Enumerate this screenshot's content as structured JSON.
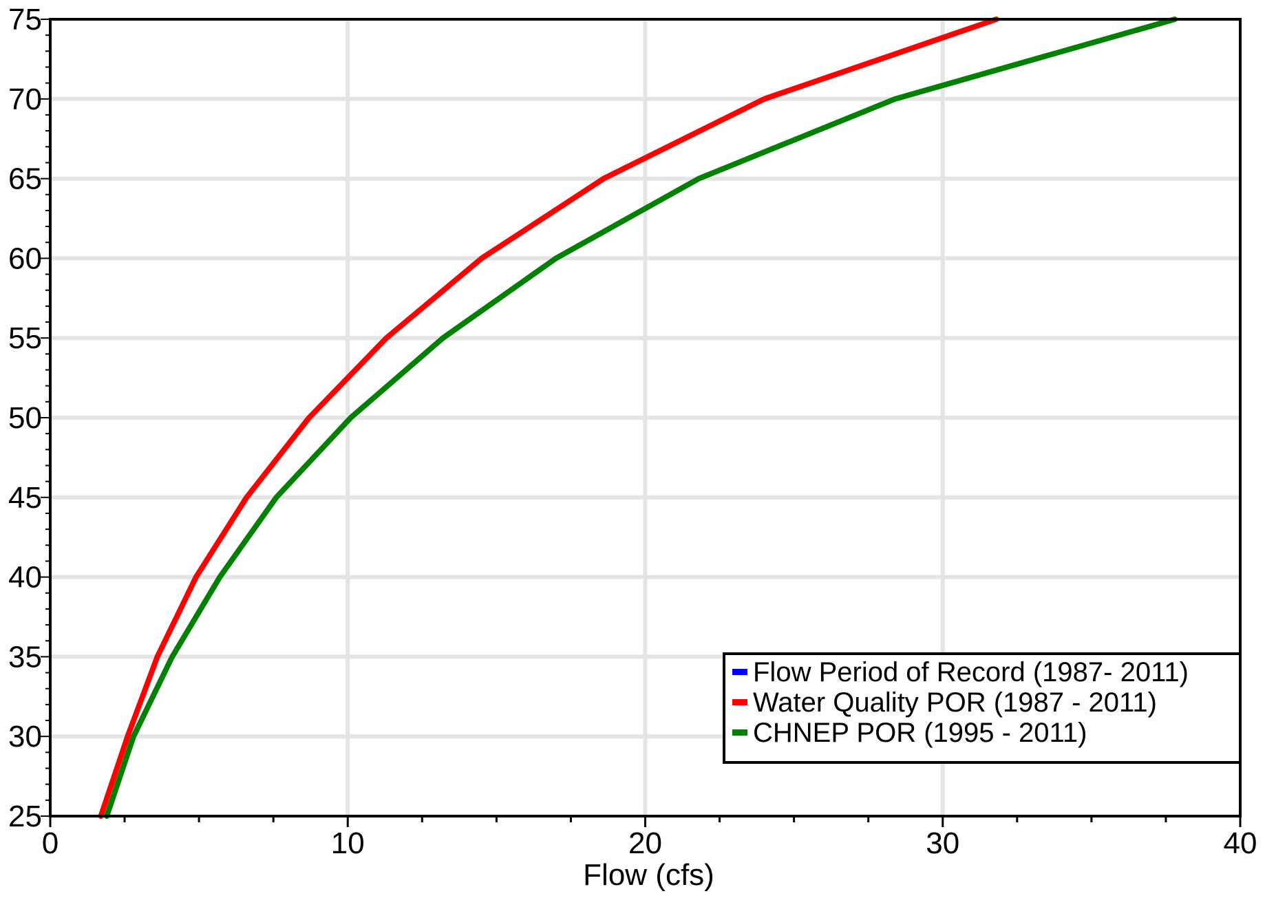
{
  "chart_data": {
    "type": "line",
    "title": "",
    "xlabel": "Flow (cfs)",
    "ylabel": "",
    "xlim": [
      0,
      40
    ],
    "ylim": [
      25,
      75
    ],
    "x_ticks": [
      "0",
      "10",
      "20",
      "30",
      "40"
    ],
    "y_ticks": [
      "25",
      "30",
      "35",
      "40",
      "45",
      "50",
      "55",
      "60",
      "65",
      "70",
      "75"
    ],
    "grid": true,
    "legend_position": "bottom-right",
    "legend": [
      {
        "name": "Flow Period of Record (1987- 2011)",
        "color": "#0000ff"
      },
      {
        "name": "Water Quality POR (1987 - 2011)",
        "color": "#ff0000"
      },
      {
        "name": "CHNEP POR (1995 - 2011)",
        "color": "#008000"
      }
    ],
    "series": [
      {
        "name": "Water Quality POR (1987 - 2011)",
        "color": "#ff0000",
        "points": [
          [
            1.7,
            25
          ],
          [
            2.6,
            30
          ],
          [
            3.6,
            35
          ],
          [
            4.9,
            40
          ],
          [
            6.6,
            45
          ],
          [
            8.7,
            50
          ],
          [
            11.3,
            55
          ],
          [
            14.5,
            60
          ],
          [
            18.6,
            65
          ],
          [
            24.0,
            70
          ],
          [
            31.8,
            75
          ]
        ]
      },
      {
        "name": "CHNEP POR (1995 - 2011)",
        "color": "#008000",
        "points": [
          [
            1.9,
            25
          ],
          [
            2.8,
            30
          ],
          [
            4.1,
            35
          ],
          [
            5.7,
            40
          ],
          [
            7.6,
            45
          ],
          [
            10.1,
            50
          ],
          [
            13.2,
            55
          ],
          [
            17.0,
            60
          ],
          [
            21.8,
            65
          ],
          [
            28.4,
            70
          ],
          [
            37.8,
            75
          ]
        ]
      }
    ]
  }
}
